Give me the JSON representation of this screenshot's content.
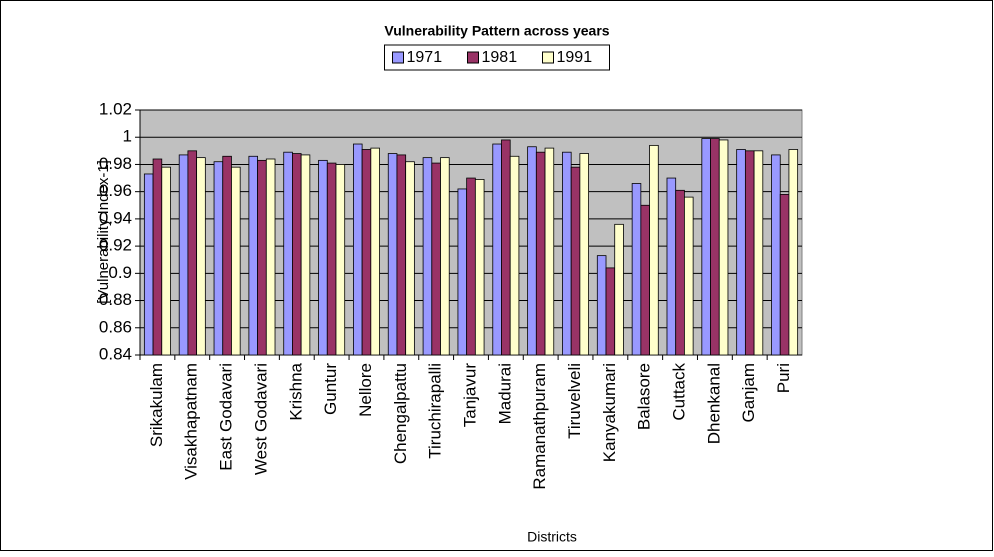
{
  "chart_data": {
    "type": "bar",
    "title": "Vulnerability Pattern across years",
    "x_label": "Districts",
    "y_label": "[Vulnerability Index-1]",
    "categories": [
      "Srikakulam",
      "Visakhapatnam",
      "East Godavari",
      "West Godavari",
      "Krishna",
      "Guntur",
      "Nellore",
      "Chengalpattu",
      "Tiruchirapalli",
      "Tanjavur",
      "Madurai",
      "Ramanathpuram",
      "Tiruvelveli",
      "Kanyakumari",
      "Balasore",
      "Cuttack",
      "Dhenkanal",
      "Ganjam",
      "Puri"
    ],
    "series": [
      {
        "name": "1971",
        "color": "#9999ff",
        "values": [
          0.973,
          0.987,
          0.982,
          0.986,
          0.989,
          0.983,
          0.995,
          0.988,
          0.985,
          0.962,
          0.995,
          0.993,
          0.989,
          0.913,
          0.966,
          0.97,
          0.999,
          0.991,
          0.987
        ]
      },
      {
        "name": "1981",
        "color": "#993366",
        "values": [
          0.984,
          0.99,
          0.986,
          0.983,
          0.988,
          0.981,
          0.991,
          0.987,
          0.981,
          0.97,
          0.998,
          0.989,
          0.978,
          0.904,
          0.95,
          0.961,
          0.999,
          0.99,
          0.958
        ]
      },
      {
        "name": "1991",
        "color": "#ffffcc",
        "values": [
          0.978,
          0.985,
          0.978,
          0.984,
          0.987,
          0.98,
          0.992,
          0.982,
          0.985,
          0.969,
          0.986,
          0.992,
          0.988,
          0.936,
          0.994,
          0.956,
          0.998,
          0.99,
          0.991
        ]
      }
    ],
    "ylim": [
      0.84,
      1.02
    ],
    "yticks": [
      0.84,
      0.86,
      0.88,
      0.9,
      0.92,
      0.94,
      0.96,
      0.98,
      1,
      1.02
    ],
    "grid": true,
    "legend": "top",
    "plot_background": "#c0c0c0"
  }
}
